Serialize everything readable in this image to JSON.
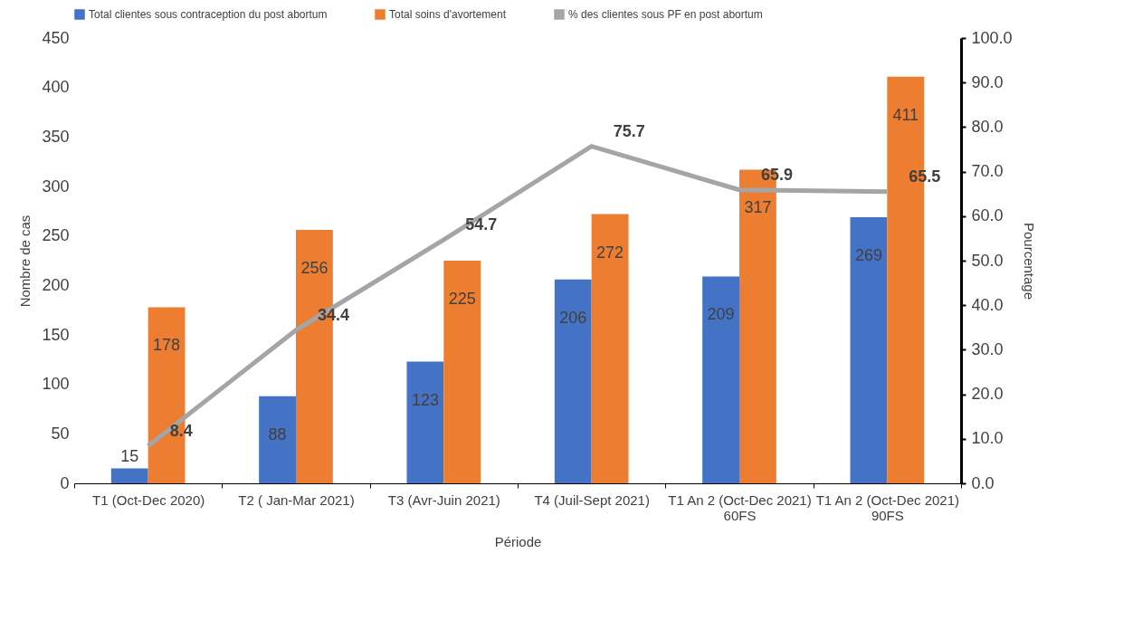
{
  "chart_data": {
    "type": "bar",
    "xlabel": "Période",
    "ylabel": "Nombre de cas",
    "y2label": "Pourcentage",
    "categories": [
      "T1 (Oct-Dec 2020)",
      "T2 ( Jan-Mar 2021)",
      "T3 (Avr-Juin 2021)",
      "T4 (Juil-Sept 2021)",
      "T1 An 2 (Oct-Dec 2021) 60FS",
      "T1 An 2 (Oct-Dec 2021) 90FS"
    ],
    "series": [
      {
        "name": "Total clientes sous contraception du post abortum",
        "color": "#4472c4",
        "values": [
          15,
          88,
          123,
          206,
          209,
          269
        ]
      },
      {
        "name": "Total soins d'avortement",
        "color": "#ed7d31",
        "values": [
          178,
          256,
          225,
          272,
          317,
          411
        ]
      },
      {
        "name": "% des clientes sous PF en post abortum",
        "type": "line",
        "axis": "y2",
        "color": "#a5a5a5",
        "values": [
          8.4,
          34.4,
          54.7,
          75.7,
          65.9,
          65.5
        ]
      }
    ],
    "ylim": [
      0,
      450
    ],
    "yticks": [
      0,
      50,
      100,
      150,
      200,
      250,
      300,
      350,
      400,
      450
    ],
    "y2lim": [
      0,
      100
    ],
    "y2ticks": [
      {
        "value": 0,
        "label": "0.0"
      },
      {
        "value": 10,
        "label": "10.0"
      },
      {
        "value": 20,
        "label": "20.0"
      },
      {
        "value": 30,
        "label": "30.0"
      },
      {
        "value": 40,
        "label": "40.0"
      },
      {
        "value": 50,
        "label": "50.0"
      },
      {
        "value": 60,
        "label": "60.0"
      },
      {
        "value": 70,
        "label": "70.0"
      },
      {
        "value": 80,
        "label": "80.0"
      },
      {
        "value": 90,
        "label": "90.0"
      },
      {
        "value": 100,
        "label": "100.0"
      }
    ],
    "data_labels": true,
    "grid": false,
    "legend": "top",
    "marker": "none",
    "line_style": "solid"
  }
}
